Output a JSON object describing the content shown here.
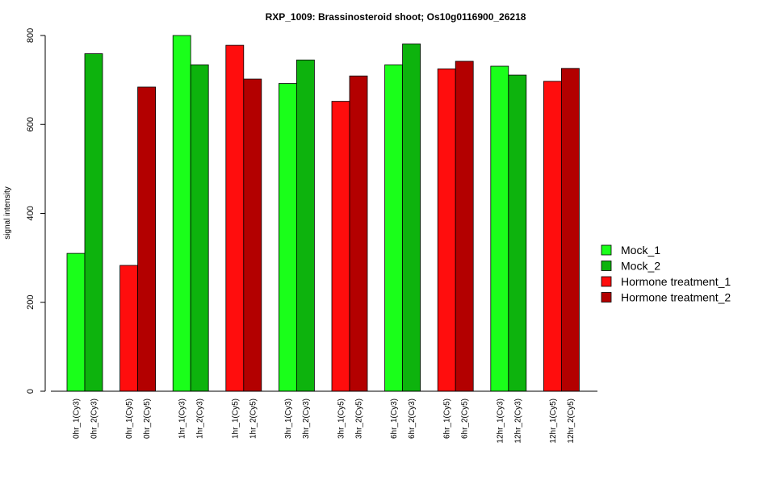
{
  "chart_data": {
    "type": "bar",
    "title": "RXP_1009: Brassinosteroid shoot; Os10g0116900_26218",
    "ylabel": "signal intensity",
    "xlabel": "",
    "ylim": [
      0,
      800
    ],
    "yticks": [
      0,
      200,
      400,
      600,
      800
    ],
    "grid": false,
    "legend_position": "right",
    "legend": [
      {
        "name": "Mock_1",
        "color": "#1AFF1A"
      },
      {
        "name": "Mock_2",
        "color": "#0DB30D"
      },
      {
        "name": "Hormone treatment_1",
        "color": "#FF0D0D"
      },
      {
        "name": "Hormone treatment_2",
        "color": "#B30000"
      }
    ],
    "groups": [
      {
        "bars": [
          {
            "label": "0hr_1(Cy3)",
            "value": 310,
            "color": "#1AFF1A"
          },
          {
            "label": "0hr_2(Cy3)",
            "value": 759,
            "color": "#0DB30D"
          }
        ]
      },
      {
        "bars": [
          {
            "label": "0hr_1(Cy5)",
            "value": 283,
            "color": "#FF0D0D"
          },
          {
            "label": "0hr_2(Cy5)",
            "value": 684,
            "color": "#B30000"
          }
        ]
      },
      {
        "bars": [
          {
            "label": "1hr_1(Cy3)",
            "value": 800,
            "color": "#1AFF1A"
          },
          {
            "label": "1hr_2(Cy3)",
            "value": 734,
            "color": "#0DB30D"
          }
        ]
      },
      {
        "bars": [
          {
            "label": "1hr_1(Cy5)",
            "value": 778,
            "color": "#FF0D0D"
          },
          {
            "label": "1hr_2(Cy5)",
            "value": 702,
            "color": "#B30000"
          }
        ]
      },
      {
        "bars": [
          {
            "label": "3hr_1(Cy3)",
            "value": 692,
            "color": "#1AFF1A"
          },
          {
            "label": "3hr_2(Cy3)",
            "value": 745,
            "color": "#0DB30D"
          }
        ]
      },
      {
        "bars": [
          {
            "label": "3hr_1(Cy5)",
            "value": 652,
            "color": "#FF0D0D"
          },
          {
            "label": "3hr_2(Cy5)",
            "value": 709,
            "color": "#B30000"
          }
        ]
      },
      {
        "bars": [
          {
            "label": "6hr_1(Cy3)",
            "value": 734,
            "color": "#1AFF1A"
          },
          {
            "label": "6hr_2(Cy3)",
            "value": 781,
            "color": "#0DB30D"
          }
        ]
      },
      {
        "bars": [
          {
            "label": "6hr_1(Cy5)",
            "value": 725,
            "color": "#FF0D0D"
          },
          {
            "label": "6hr_2(Cy5)",
            "value": 742,
            "color": "#B30000"
          }
        ]
      },
      {
        "bars": [
          {
            "label": "12hr_1(Cy3)",
            "value": 731,
            "color": "#1AFF1A"
          },
          {
            "label": "12hr_2(Cy3)",
            "value": 711,
            "color": "#0DB30D"
          }
        ]
      },
      {
        "bars": [
          {
            "label": "12hr_1(Cy5)",
            "value": 697,
            "color": "#FF0D0D"
          },
          {
            "label": "12hr_2(Cy5)",
            "value": 726,
            "color": "#B30000"
          }
        ]
      }
    ]
  }
}
